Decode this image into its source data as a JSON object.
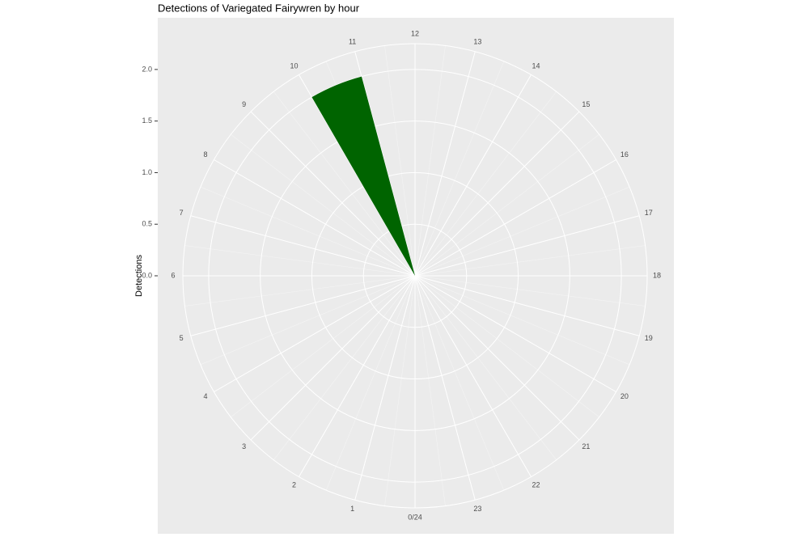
{
  "chart_data": {
    "type": "polar-bar",
    "title": "Detections of Variegated Fairywren by hour",
    "y_label": "Detections",
    "x": [
      0,
      1,
      2,
      3,
      4,
      5,
      6,
      7,
      8,
      9,
      10,
      11,
      12,
      13,
      14,
      15,
      16,
      17,
      18,
      19,
      20,
      21,
      22,
      23
    ],
    "values": [
      0,
      0,
      0,
      0,
      0,
      0,
      0,
      0,
      0,
      0,
      2,
      0,
      0,
      0,
      0,
      0,
      0,
      0,
      0,
      0,
      0,
      0,
      0,
      0
    ],
    "color": "#006400",
    "xlim": [
      0,
      24
    ],
    "xticks": [
      {
        "value": 0,
        "label": "0/24"
      },
      1,
      2,
      3,
      4,
      5,
      6,
      7,
      8,
      9,
      10,
      11,
      12,
      13,
      14,
      15,
      16,
      17,
      18,
      19,
      20,
      21,
      22,
      23
    ],
    "ylim": [
      0,
      2.25
    ],
    "yticks": [
      {
        "value": 0,
        "label": "0.0"
      },
      0.5,
      {
        "value": 1,
        "label": "1.0"
      },
      1.5,
      {
        "value": 2,
        "label": "2.0"
      }
    ],
    "grid": true
  }
}
